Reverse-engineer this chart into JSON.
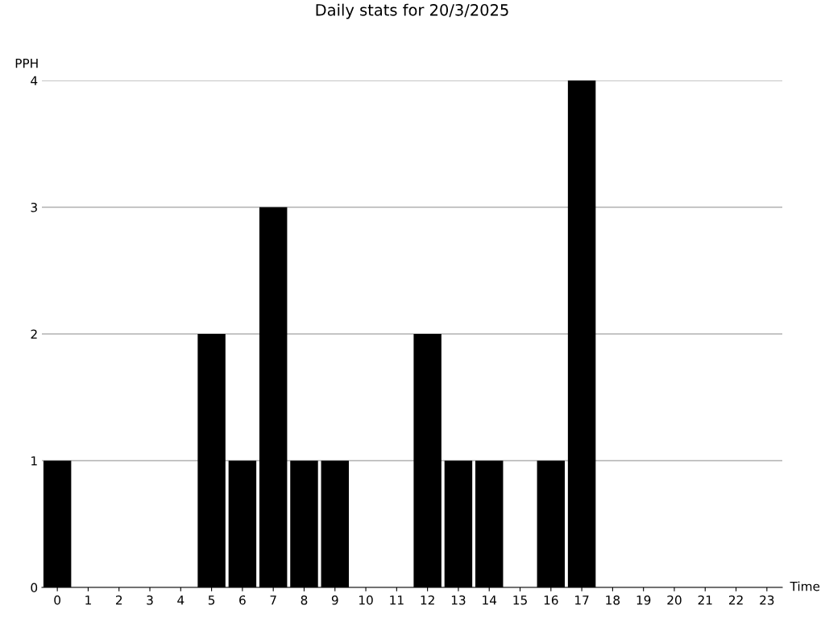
{
  "chart_data": {
    "type": "bar",
    "title": "Daily stats for 20/3/2025",
    "xlabel": "Time",
    "ylabel": "PPH",
    "categories": [
      "0",
      "1",
      "2",
      "3",
      "4",
      "5",
      "6",
      "7",
      "8",
      "9",
      "10",
      "11",
      "12",
      "13",
      "14",
      "15",
      "16",
      "17",
      "18",
      "19",
      "20",
      "21",
      "22",
      "23"
    ],
    "values": [
      1,
      0,
      0,
      0,
      0,
      2,
      1,
      3,
      1,
      1,
      0,
      0,
      2,
      1,
      1,
      0,
      1,
      4,
      0,
      0,
      0,
      0,
      0,
      0
    ],
    "color": "#000000",
    "ylim": [
      0,
      4
    ],
    "yticks": [
      0,
      1,
      2,
      3,
      4
    ],
    "grid": "y"
  }
}
